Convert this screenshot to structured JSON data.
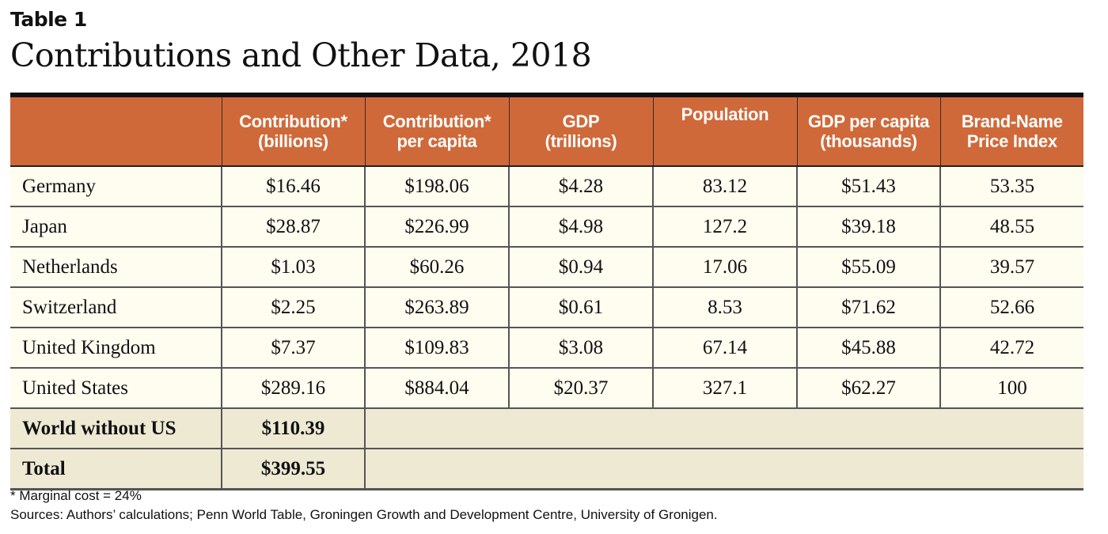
{
  "label": "Table 1",
  "title": "Contributions and Other Data, 2018",
  "columns": [
    {
      "line1": "",
      "line2": ""
    },
    {
      "line1": "Contribution*",
      "line2": "(billions)"
    },
    {
      "line1": "Contribution*",
      "line2": "per capita"
    },
    {
      "line1": "GDP",
      "line2": "(trillions)"
    },
    {
      "line1": "Population",
      "line2": ""
    },
    {
      "line1": "GDP per capita",
      "line2": "(thousands)"
    },
    {
      "line1": "Brand-Name",
      "line2": "Price Index"
    }
  ],
  "rows": [
    [
      "Germany",
      "$16.46",
      "$198.06",
      "$4.28",
      "83.12",
      "$51.43",
      "53.35"
    ],
    [
      "Japan",
      "$28.87",
      "$226.99",
      "$4.98",
      "127.2",
      "$39.18",
      "48.55"
    ],
    [
      "Netherlands",
      "$1.03",
      "$60.26",
      "$0.94",
      "17.06",
      "$55.09",
      "39.57"
    ],
    [
      "Switzerland",
      "$2.25",
      "$263.89",
      "$0.61",
      "8.53",
      "$71.62",
      "52.66"
    ],
    [
      "United Kingdom",
      "$7.37",
      "$109.83",
      "$3.08",
      "67.14",
      "$45.88",
      "42.72"
    ],
    [
      "United States",
      "$289.16",
      "$884.04",
      "$20.37",
      "327.1",
      "$62.27",
      "100"
    ]
  ],
  "summary_rows": [
    [
      "World without US",
      "$110.39"
    ],
    [
      "Total",
      "$399.55"
    ]
  ],
  "footnote": "* Marginal cost = 24%",
  "sources": "Sources: Authors’ calculations; Penn World Table, Groningen Growth and Development Centre, University of Gronigen.",
  "colors": {
    "header_bg": "#d0693a",
    "row_bg": "#fffcf0",
    "summary_bg": "#ede9d3"
  }
}
